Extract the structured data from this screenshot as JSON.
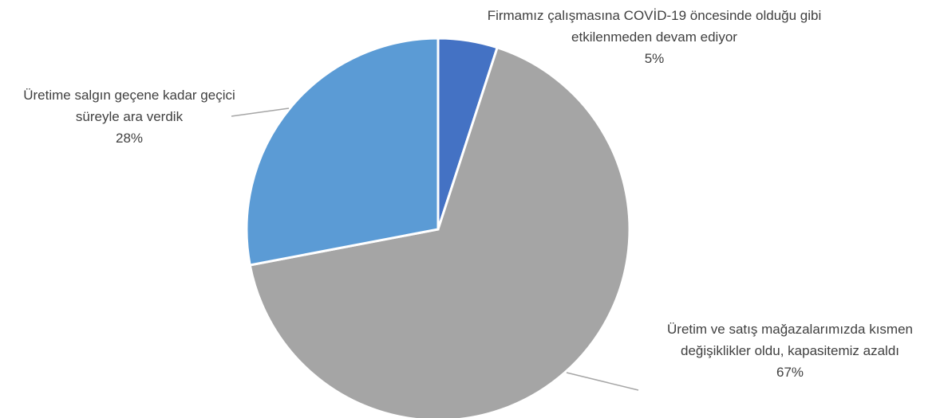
{
  "chart_data": {
    "type": "pie",
    "categories": [
      "Firmamız çalışmasına COVİD-19 öncesinde olduğu gibi etkilenmeden devam ediyor",
      "Üretim ve satış mağazalarımızda kısmen değişiklikler oldu, kapasitemiz azaldı",
      "Üretime salgın geçene kadar geçici süreyle ara verdik"
    ],
    "values": [
      5,
      67,
      28
    ],
    "value_labels": [
      "5%",
      "67%",
      "28%"
    ],
    "colors": [
      "#4472c4",
      "#a5a5a5",
      "#5b9bd5"
    ]
  }
}
